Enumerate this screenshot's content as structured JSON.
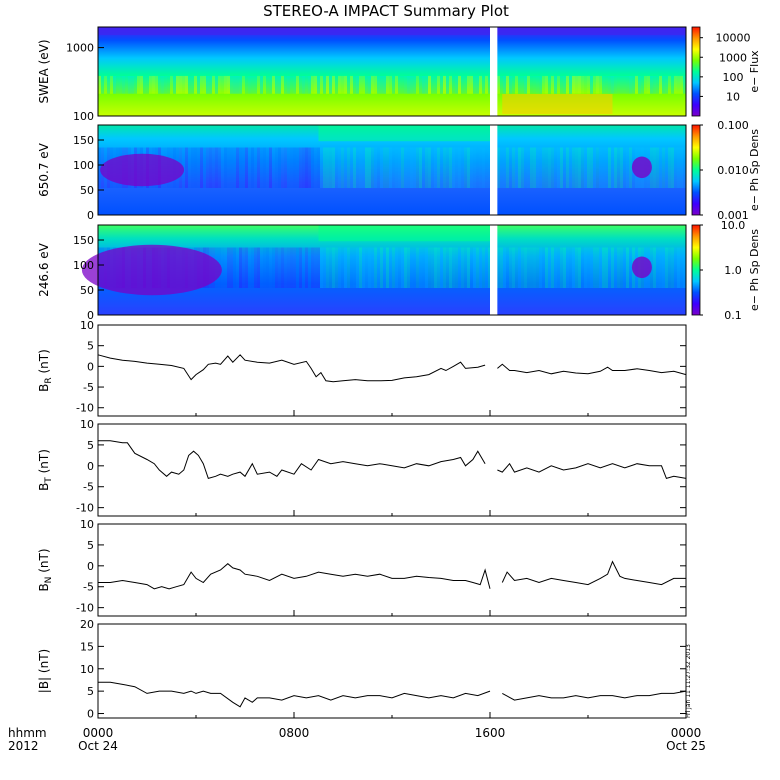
{
  "title": "STEREO-A IMPACT Summary Plot",
  "footer": {
    "axis_label_1": "hhmm",
    "axis_label_2": "2012",
    "stamp": "Fri Jan 11 11:27:32 2013"
  },
  "x_axis": {
    "range_hours": [
      0,
      24
    ],
    "ticks": [
      {
        "hour": 0,
        "label": "0000",
        "sublabel": "Oct 24"
      },
      {
        "hour": 8,
        "label": "0800",
        "sublabel": ""
      },
      {
        "hour": 16,
        "label": "1600",
        "sublabel": ""
      },
      {
        "hour": 24,
        "label": "0000",
        "sublabel": "Oct 25"
      }
    ],
    "data_gap_hours": [
      16.0,
      16.3
    ]
  },
  "colors": {
    "line": "#000000",
    "gap": "#ffffff",
    "colormap": [
      "#7a00c8",
      "#3c00ff",
      "#0050ff",
      "#00c8ff",
      "#00ff96",
      "#78ff00",
      "#ffff00",
      "#ff9600",
      "#ff1400"
    ]
  },
  "spectrograms": [
    {
      "name": "swea",
      "ylabel": "SWEA (eV)",
      "scale": "log",
      "yrange": [
        100,
        2000
      ],
      "yticks": [
        {
          "v": 100,
          "label": "100"
        },
        {
          "v": 1000,
          "label": "1000"
        }
      ],
      "colorbar_label": "e− Flux",
      "colorbar_ticks": [
        {
          "f": 0.22,
          "label": "10"
        },
        {
          "f": 0.44,
          "label": "100"
        },
        {
          "f": 0.66,
          "label": "1000"
        },
        {
          "f": 0.88,
          "label": "10000"
        }
      ]
    },
    {
      "name": "pad-650",
      "ylabel": "650.7 eV",
      "scale": "linear",
      "yrange": [
        0,
        180
      ],
      "yticks": [
        {
          "v": 0,
          "label": "0"
        },
        {
          "v": 50,
          "label": "50"
        },
        {
          "v": 100,
          "label": "100"
        },
        {
          "v": 150,
          "label": "150"
        }
      ],
      "colorbar_label": "e− Ph Sp Dens",
      "colorbar_ticks": [
        {
          "f": 0.0,
          "label": "0.001"
        },
        {
          "f": 0.5,
          "label": "0.010"
        },
        {
          "f": 1.0,
          "label": "0.100"
        }
      ]
    },
    {
      "name": "pad-246",
      "ylabel": "246.6 eV",
      "scale": "linear",
      "yrange": [
        0,
        180
      ],
      "yticks": [
        {
          "v": 0,
          "label": "0"
        },
        {
          "v": 50,
          "label": "50"
        },
        {
          "v": 100,
          "label": "100"
        },
        {
          "v": 150,
          "label": "150"
        }
      ],
      "colorbar_label": "e− Ph Sp Dens",
      "colorbar_ticks": [
        {
          "f": 0.0,
          "label": "0.1"
        },
        {
          "f": 0.5,
          "label": "1.0"
        },
        {
          "f": 1.0,
          "label": "10.0"
        }
      ]
    }
  ],
  "chart_data": [
    {
      "type": "line",
      "name": "BR",
      "ylabel": "B",
      "ylabel_sub": "R",
      "ylabel_unit": "(nT)",
      "ylim": [
        -12,
        10
      ],
      "yticks": [
        -10,
        -5,
        0,
        5,
        10
      ],
      "x": [
        0.0,
        0.5,
        1.0,
        1.5,
        2.0,
        2.5,
        3.0,
        3.5,
        3.8,
        4.0,
        4.3,
        4.5,
        4.8,
        5.0,
        5.3,
        5.5,
        5.8,
        6.0,
        6.5,
        7.0,
        7.5,
        8.0,
        8.5,
        8.7,
        8.9,
        9.1,
        9.3,
        9.6,
        10.0,
        10.5,
        11.0,
        11.5,
        12.0,
        12.5,
        13.0,
        13.5,
        14.0,
        14.2,
        14.5,
        14.8,
        15.0,
        15.5,
        15.8,
        16.0,
        16.3,
        16.5,
        16.8,
        17.0,
        17.5,
        18.0,
        18.5,
        19.0,
        19.5,
        20.0,
        20.5,
        20.8,
        21.0,
        21.5,
        22.0,
        22.5,
        23.0,
        23.5,
        24.0
      ],
      "y": [
        2.8,
        2.0,
        1.5,
        1.2,
        0.8,
        0.5,
        0.2,
        -0.5,
        -3.2,
        -2.0,
        -0.8,
        0.5,
        0.8,
        0.5,
        2.5,
        1.0,
        2.8,
        1.5,
        1.0,
        0.8,
        1.5,
        0.5,
        1.2,
        -0.5,
        -2.5,
        -1.5,
        -3.5,
        -3.7,
        -3.5,
        -3.2,
        -3.5,
        -3.5,
        -3.4,
        -2.8,
        -2.5,
        -2.0,
        -0.5,
        -1.0,
        0.0,
        1.0,
        -0.5,
        -0.2,
        0.3,
        null,
        -0.5,
        0.5,
        -1.0,
        -1.0,
        -1.5,
        -1.0,
        -1.8,
        -1.2,
        -1.6,
        -1.8,
        -1.2,
        -0.2,
        -1.0,
        -1.0,
        -0.6,
        -1.0,
        -1.5,
        -1.2,
        -2.0
      ]
    },
    {
      "type": "line",
      "name": "BT",
      "ylabel": "B",
      "ylabel_sub": "T",
      "ylabel_unit": "(nT)",
      "ylim": [
        -12,
        10
      ],
      "yticks": [
        -10,
        -5,
        0,
        5,
        10
      ],
      "x": [
        0.0,
        0.5,
        1.0,
        1.2,
        1.5,
        2.0,
        2.3,
        2.5,
        2.8,
        3.0,
        3.3,
        3.5,
        3.7,
        3.9,
        4.1,
        4.3,
        4.5,
        4.8,
        5.0,
        5.3,
        5.5,
        5.8,
        6.0,
        6.3,
        6.5,
        7.0,
        7.3,
        7.5,
        8.0,
        8.3,
        8.7,
        9.0,
        9.5,
        10.0,
        10.5,
        11.0,
        11.5,
        12.0,
        12.5,
        13.0,
        13.5,
        14.0,
        14.5,
        14.8,
        15.0,
        15.3,
        15.5,
        15.8,
        16.0,
        16.3,
        16.5,
        16.8,
        17.0,
        17.5,
        18.0,
        18.5,
        19.0,
        19.5,
        20.0,
        20.5,
        21.0,
        21.5,
        22.0,
        22.5,
        23.0,
        23.2,
        23.5,
        24.0
      ],
      "y": [
        6.0,
        6.0,
        5.5,
        5.5,
        3.0,
        1.5,
        0.5,
        -1.0,
        -2.5,
        -1.5,
        -2.0,
        -1.0,
        2.5,
        3.5,
        2.5,
        0.5,
        -3.0,
        -2.5,
        -2.0,
        -2.5,
        -2.0,
        -1.5,
        -2.5,
        0.5,
        -2.0,
        -1.5,
        -2.5,
        -1.0,
        -2.0,
        0.5,
        -1.0,
        1.5,
        0.5,
        1.0,
        0.5,
        0.0,
        0.5,
        0.0,
        -0.5,
        0.5,
        0.0,
        1.0,
        1.5,
        2.0,
        0.0,
        1.5,
        3.5,
        0.5,
        null,
        -1.0,
        -1.5,
        0.5,
        -1.5,
        -0.5,
        -1.5,
        0.0,
        -1.0,
        -0.5,
        0.5,
        -0.5,
        0.5,
        -0.5,
        0.5,
        0.0,
        0.0,
        -3.0,
        -2.5,
        -3.0
      ]
    },
    {
      "type": "line",
      "name": "BN",
      "ylabel": "B",
      "ylabel_sub": "N",
      "ylabel_unit": "(nT)",
      "ylim": [
        -12,
        10
      ],
      "yticks": [
        -10,
        -5,
        0,
        5,
        10
      ],
      "x": [
        0.0,
        0.5,
        1.0,
        1.5,
        2.0,
        2.3,
        2.6,
        2.9,
        3.2,
        3.5,
        3.8,
        4.0,
        4.3,
        4.6,
        5.0,
        5.3,
        5.5,
        5.8,
        6.0,
        6.5,
        7.0,
        7.5,
        8.0,
        8.5,
        9.0,
        9.5,
        10.0,
        10.5,
        11.0,
        11.5,
        12.0,
        12.5,
        13.0,
        13.5,
        14.0,
        14.5,
        15.0,
        15.3,
        15.6,
        15.8,
        16.0,
        16.3,
        16.5,
        16.7,
        17.0,
        17.5,
        18.0,
        18.5,
        19.0,
        19.5,
        20.0,
        20.5,
        20.8,
        21.0,
        21.3,
        21.5,
        22.0,
        22.5,
        23.0,
        23.5,
        24.0
      ],
      "y": [
        -4.0,
        -4.0,
        -3.5,
        -4.0,
        -4.5,
        -5.5,
        -5.0,
        -5.5,
        -5.0,
        -4.5,
        -1.5,
        -3.0,
        -4.0,
        -2.0,
        -1.0,
        0.5,
        -0.5,
        -1.0,
        -2.0,
        -2.5,
        -3.5,
        -2.0,
        -3.0,
        -2.5,
        -1.5,
        -2.0,
        -2.5,
        -2.0,
        -2.5,
        -2.0,
        -3.0,
        -3.0,
        -2.5,
        -2.8,
        -3.0,
        -3.5,
        -3.5,
        -4.0,
        -4.5,
        -1.0,
        -5.5,
        null,
        -4.0,
        -1.5,
        -3.5,
        -3.0,
        -4.0,
        -3.0,
        -3.5,
        -4.0,
        -4.5,
        -3.0,
        -2.0,
        1.0,
        -2.5,
        -3.0,
        -3.5,
        -4.0,
        -4.5,
        -3.0,
        -3.0
      ]
    },
    {
      "type": "line",
      "name": "|B|",
      "ylabel": "|B|",
      "ylabel_sub": "",
      "ylabel_unit": "(nT)",
      "ylim": [
        -1,
        20
      ],
      "yticks": [
        0,
        5,
        10,
        15,
        20
      ],
      "x": [
        0.0,
        0.5,
        1.0,
        1.5,
        2.0,
        2.5,
        3.0,
        3.5,
        3.8,
        4.0,
        4.3,
        4.6,
        5.0,
        5.5,
        5.8,
        6.0,
        6.3,
        6.5,
        7.0,
        7.5,
        8.0,
        8.5,
        9.0,
        9.5,
        10.0,
        10.5,
        11.0,
        11.5,
        12.0,
        12.5,
        13.0,
        13.5,
        14.0,
        14.5,
        15.0,
        15.5,
        16.0,
        16.3,
        16.5,
        17.0,
        17.5,
        18.0,
        18.5,
        19.0,
        19.5,
        20.0,
        20.5,
        21.0,
        21.5,
        22.0,
        22.5,
        23.0,
        23.5,
        24.0
      ],
      "y": [
        7.0,
        7.0,
        6.5,
        6.0,
        4.5,
        5.0,
        5.0,
        4.5,
        5.0,
        4.5,
        5.0,
        4.5,
        4.5,
        2.5,
        1.5,
        3.5,
        2.5,
        3.5,
        3.5,
        3.0,
        4.0,
        3.5,
        4.0,
        3.0,
        4.0,
        3.5,
        4.0,
        4.0,
        3.5,
        4.5,
        4.0,
        3.5,
        4.0,
        3.5,
        4.5,
        4.0,
        5.0,
        null,
        4.5,
        3.0,
        3.5,
        4.0,
        3.5,
        3.5,
        4.0,
        3.5,
        4.0,
        4.0,
        3.5,
        4.0,
        4.0,
        4.5,
        4.5,
        5.0
      ]
    }
  ]
}
